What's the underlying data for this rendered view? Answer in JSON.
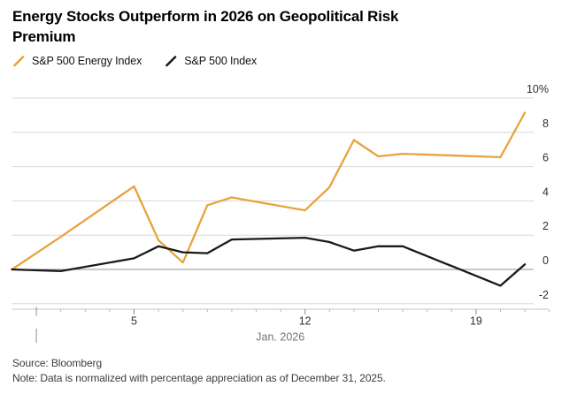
{
  "header": {
    "title": "Energy Stocks Outperform in 2026 on Geopolitical Risk Premium"
  },
  "legend": [
    {
      "label": "S&P 500 Energy Index",
      "color": "#E8A33D"
    },
    {
      "label": "S&P 500 Index",
      "color": "#1A1A1A"
    }
  ],
  "footer": {
    "source": "Source: Bloomberg",
    "note": "Note: Data is normalized with percentage appreciation as of December 31, 2025."
  },
  "colors": {
    "energy_line": "#E8A33D",
    "spx_line": "#1A1A1A",
    "gridline": "#D8D8D8",
    "zero_line": "#909090",
    "axis_line": "#C4C4C4",
    "tick_minor": "#B8B8B8",
    "tick_major": "#8F8F8F",
    "axis_label": "#2E2E2E",
    "month_label": "#757575"
  },
  "chart_data": {
    "type": "line",
    "title": "Energy Stocks Outperform in 2026 on Geopolitical Risk Premium",
    "xlabel": "Jan. 2026",
    "ylabel": "%",
    "x": [
      "Dec 31",
      "Jan 2",
      "Jan 5",
      "Jan 6",
      "Jan 7",
      "Jan 8",
      "Jan 9",
      "Jan 12",
      "Jan 13",
      "Jan 14",
      "Jan 15",
      "Jan 16",
      "Jan 20",
      "Jan 21"
    ],
    "x_day_offsets": [
      0,
      2,
      5,
      6,
      7,
      8,
      9,
      12,
      13,
      14,
      15,
      16,
      20,
      21
    ],
    "series": [
      {
        "name": "S&P 500 Energy Index",
        "color": "#E8A33D",
        "values": [
          0,
          1.9,
          4.85,
          1.7,
          0.4,
          3.75,
          4.2,
          3.45,
          4.8,
          7.55,
          6.6,
          6.75,
          6.55,
          9.15
        ]
      },
      {
        "name": "S&P 500 Index",
        "color": "#1A1A1A",
        "values": [
          0,
          -0.1,
          0.65,
          1.35,
          1.0,
          0.95,
          1.75,
          1.85,
          1.6,
          1.1,
          1.35,
          1.35,
          -0.95,
          0.3
        ]
      }
    ],
    "y_ticks": [
      -2,
      0,
      2,
      4,
      6,
      8,
      10
    ],
    "y_top_tick_label": "10%",
    "ylim": [
      -2.3,
      10.3
    ],
    "x_ticks_labeled": [
      {
        "day": 5,
        "label": "5"
      },
      {
        "day": 12,
        "label": "12"
      },
      {
        "day": 19,
        "label": "19"
      }
    ],
    "x_axis_day_range": [
      0,
      22
    ],
    "year_start_tick_day": 1,
    "grid": "horizontal",
    "zero_line_emphasized": true,
    "legend_position": "top-left",
    "y_axis_side": "right"
  }
}
